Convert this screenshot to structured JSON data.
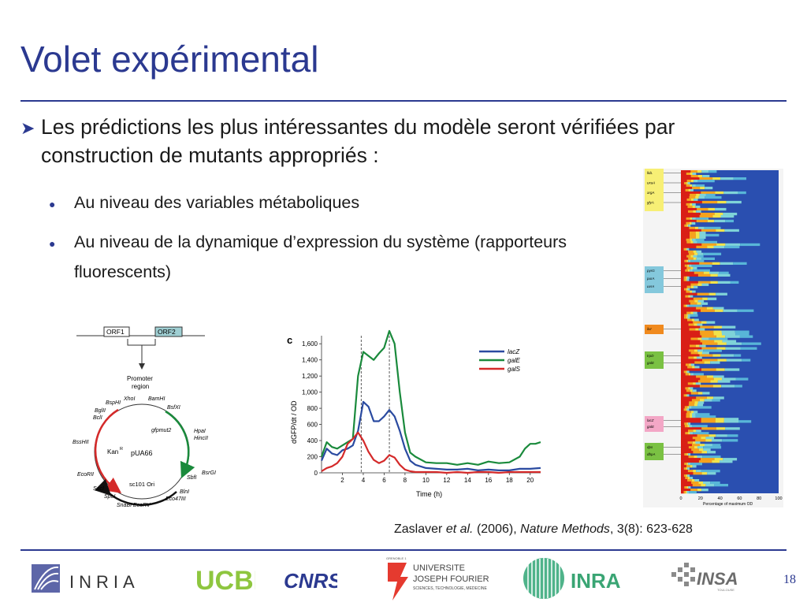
{
  "slide": {
    "title": "Volet expérimental",
    "bullet": "Les prédictions les plus intéressantes du modèle seront vérifiées par construction de mutants appropriés :",
    "subbullets": [
      "Au niveau des variables métaboliques",
      "Au niveau de la dynamique d’expression du système (rapporteurs fluorescents)"
    ],
    "citation": {
      "authors": "Zaslaver",
      "etal": "et al.",
      "year": " (2006), ",
      "journal": "Nature Methods",
      "ref": ", 3(8): 623-628"
    },
    "page_number": "18"
  },
  "plasmid": {
    "orf1": "ORF1",
    "orf2": "ORF2",
    "promoter": [
      "Promoter",
      "region"
    ],
    "center": "pUA66",
    "ori": "sc101 Ori",
    "kan": "Kan",
    "kan_sup": "R",
    "gfp": "gfpmut2",
    "sites": {
      "BspHI": "BspHI",
      "XhoI": "XhoI",
      "BamHI": "BamHI",
      "BglII": "BglII",
      "BsrXI": "BsfXI",
      "BclI": "BclI",
      "HpaI": "HpaI",
      "HincII": "HincII",
      "BssHII": "BssHII",
      "EcoRII": "EcoRII",
      "SbfI": "SbfI",
      "BsrGI": "BsrGI",
      "SacI": "SacI",
      "SpeI": "SpeI",
      "BlnI": "BlnI",
      "Eco47III": "Eco47III",
      "SnaBI": "SnaBI EcoRV"
    },
    "colors": {
      "gfp_arrow": "#1a8a3c",
      "kan_arrow": "#d42a2a",
      "ori_arrow": "#111111",
      "orf2_fill": "#9fcfd3"
    }
  },
  "chart_data": {
    "type": "line",
    "panel_label": "c",
    "xlabel": "Time (h)",
    "ylabel": "dGFP/dt / OD",
    "xlim": [
      0,
      21
    ],
    "ylim": [
      0,
      1700
    ],
    "xticks": [
      2,
      4,
      6,
      8,
      10,
      12,
      14,
      16,
      18,
      20
    ],
    "yticks": [
      0,
      200,
      400,
      600,
      800,
      1000,
      1200,
      1400,
      1600
    ],
    "ytick_labels": [
      "0",
      "200",
      "400",
      "600",
      "800",
      "1,000",
      "1,200",
      "1,400",
      "1,600"
    ],
    "vlines": [
      3.8,
      6.5
    ],
    "legend_position": "top-right",
    "series": [
      {
        "name": "lacZ",
        "color": "#2a4aa0",
        "x": [
          0,
          0.5,
          1,
          1.5,
          2,
          2.5,
          3,
          3.5,
          4,
          4.5,
          5,
          5.5,
          6,
          6.5,
          7,
          7.5,
          8,
          8.5,
          9,
          10,
          11,
          12,
          13,
          14,
          15,
          16,
          17,
          18,
          19,
          20,
          21
        ],
        "y": [
          150,
          300,
          240,
          220,
          280,
          300,
          340,
          520,
          880,
          820,
          640,
          640,
          700,
          780,
          700,
          520,
          300,
          150,
          100,
          60,
          50,
          40,
          40,
          50,
          30,
          40,
          30,
          30,
          50,
          50,
          60
        ]
      },
      {
        "name": "galE",
        "color": "#1a8a3c",
        "x": [
          0,
          0.5,
          1,
          1.5,
          2,
          2.5,
          3,
          3.5,
          4,
          4.5,
          5,
          5.5,
          6,
          6.5,
          7,
          7.5,
          8,
          8.5,
          9,
          10,
          11,
          12,
          13,
          14,
          15,
          16,
          17,
          18,
          19,
          19.5,
          20,
          20.5,
          21
        ],
        "y": [
          200,
          380,
          320,
          300,
          340,
          380,
          420,
          1200,
          1500,
          1450,
          1400,
          1480,
          1550,
          1760,
          1600,
          1000,
          500,
          250,
          200,
          130,
          120,
          120,
          100,
          120,
          100,
          140,
          120,
          130,
          200,
          300,
          360,
          360,
          380
        ]
      },
      {
        "name": "galS",
        "color": "#d42a2a",
        "x": [
          0,
          0.5,
          1,
          1.5,
          2,
          2.5,
          3,
          3.5,
          4,
          4.5,
          5,
          5.5,
          6,
          6.5,
          7,
          7.5,
          8,
          8.5,
          9,
          10,
          11,
          12,
          13,
          14,
          15,
          16,
          17,
          18,
          19,
          20,
          21
        ],
        "y": [
          20,
          60,
          80,
          120,
          200,
          360,
          420,
          500,
          400,
          260,
          160,
          120,
          150,
          220,
          190,
          100,
          40,
          20,
          10,
          10,
          10,
          0,
          10,
          0,
          10,
          10,
          0,
          10,
          10,
          10,
          10
        ]
      }
    ]
  },
  "heatmap": {
    "xlabel": "Percentage of maximum OD",
    "xticks": [
      "0",
      "20",
      "40",
      "60",
      "80",
      "100"
    ],
    "group_colors": [
      "#f7ef75",
      "#84c8dc",
      "#f08a1e",
      "#7ac143",
      "#f3a7c6",
      "#7ac143"
    ],
    "gene_labels": [
      [
        "lldL",
        "uxaA",
        "argA",
        "glyA"
      ],
      [
        "pyrG",
        "purA",
        "uvrA"
      ],
      [
        "ilvI"
      ],
      [
        "trpD",
        "galE"
      ],
      [
        "lacZ",
        "galE"
      ],
      [
        "dps",
        "dbpA"
      ]
    ]
  },
  "logos": {
    "inria": "INRIA",
    "ucbl": "UCBL",
    "cnrs": "CNRS",
    "ujf_line1": "UNIVERSITE",
    "ujf_line2": "JOSEPH FOURIER",
    "ujf_line3": "SCIENCES, TECHNOLOGIE, MEDECINE",
    "ujf_small": "GRENOBLE 1",
    "inra": "INRA",
    "insa": "INSA",
    "insa_small": "TOULOUSE"
  }
}
